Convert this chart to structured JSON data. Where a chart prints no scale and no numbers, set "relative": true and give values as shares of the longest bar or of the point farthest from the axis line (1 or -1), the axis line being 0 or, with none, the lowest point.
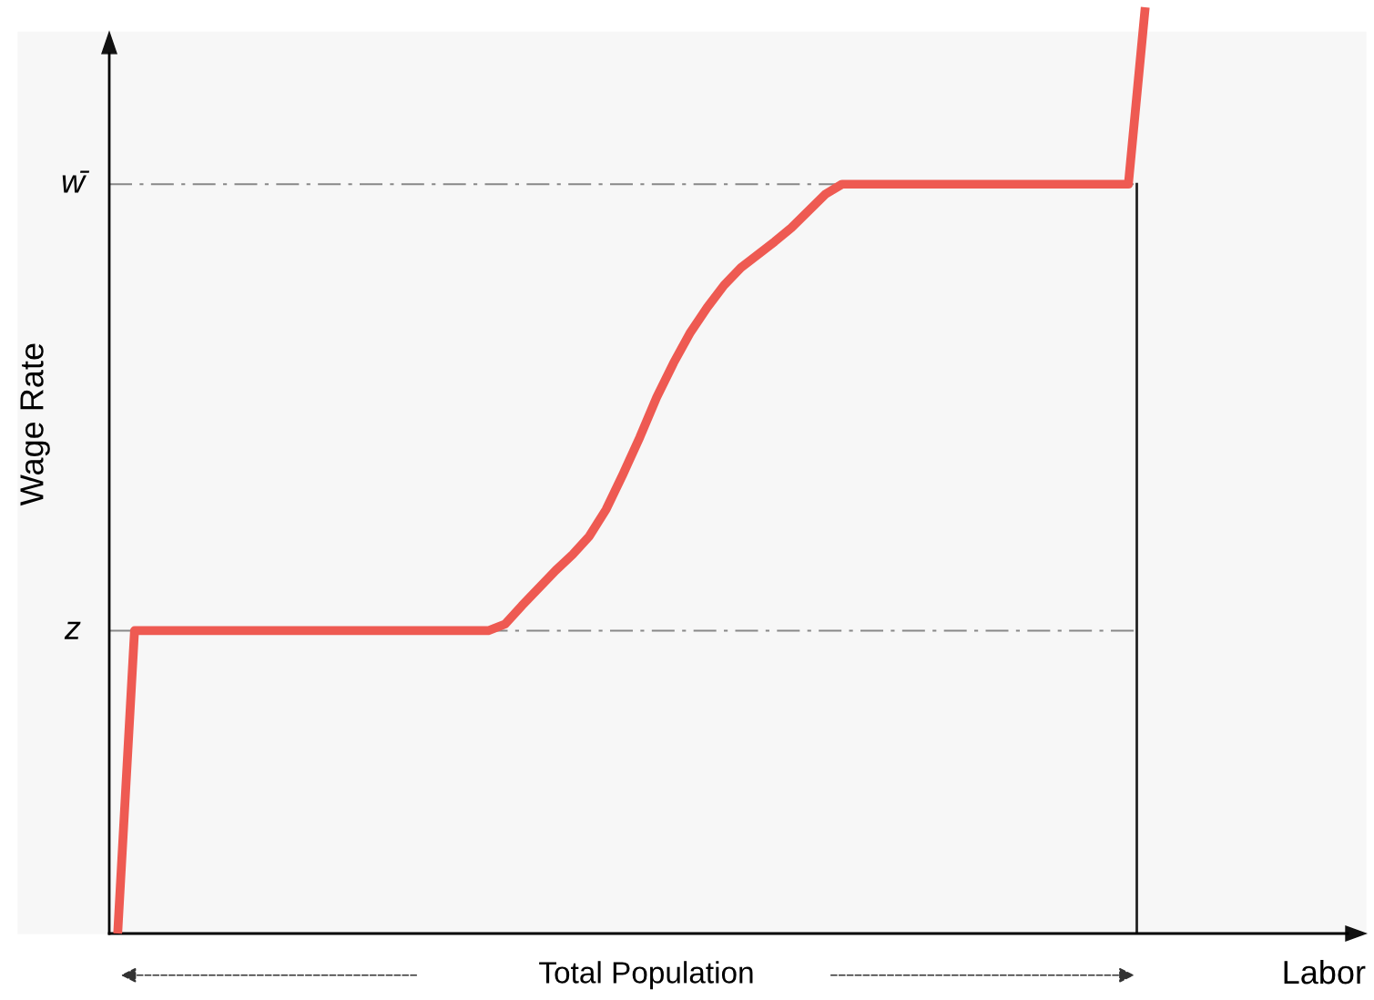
{
  "chart_data": {
    "type": "line",
    "relative": true,
    "ylabel": "Wage Rate",
    "categories": [
      null,
      null,
      null,
      null,
      null,
      null,
      null,
      null,
      null,
      null,
      null,
      null,
      null,
      null,
      null,
      null,
      null,
      null,
      null,
      null,
      null,
      null,
      null,
      null,
      null,
      null,
      null,
      null,
      null,
      null,
      null,
      null,
      null,
      null,
      null,
      null,
      null,
      null,
      null,
      null,
      null,
      null,
      null,
      null,
      null,
      null,
      null,
      null,
      null,
      null,
      null,
      null,
      null,
      null,
      null,
      null,
      null,
      null,
      null,
      null,
      null,
      null
    ],
    "series": [
      {
        "color": "#ee5a52",
        "values": [
          0,
          0.327,
          0.327,
          0.327,
          0.327,
          0.327,
          0.327,
          0.327,
          0.327,
          0.327,
          0.327,
          0.327,
          0.327,
          0.327,
          0.327,
          0.327,
          0.327,
          0.327,
          0.327,
          0.327,
          0.327,
          0.327,
          0.327,
          0.334,
          0.354,
          0.373,
          0.392,
          0.409,
          0.429,
          0.458,
          0.496,
          0.536,
          0.579,
          0.616,
          0.649,
          0.676,
          0.7,
          0.719,
          0.733,
          0.747,
          0.762,
          0.78,
          0.798,
          0.809,
          0.809,
          0.809,
          0.809,
          0.809,
          0.809,
          0.809,
          0.809,
          0.809,
          0.809,
          0.809,
          0.809,
          0.809,
          0.809,
          0.809,
          0.809,
          0.809,
          0.809,
          1
        ]
      }
    ],
    "ref_lines": [
      {
        "axis": "y",
        "value": 0.327,
        "label": "z",
        "color": "#888888",
        "line_style": "dashed"
      },
      {
        "axis": "y",
        "value": 0.809,
        "label": "w̄",
        "color": "#888888",
        "line_style": "dashed"
      }
    ],
    "annotations": [
      "Total Population",
      "Labor"
    ],
    "line_style": "solid"
  }
}
